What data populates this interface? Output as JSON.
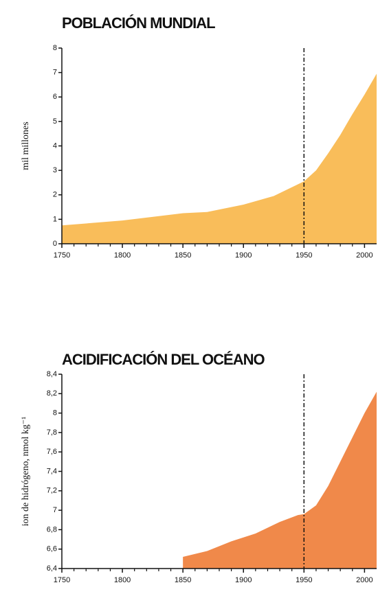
{
  "chart_data": [
    {
      "type": "area",
      "title": "POBLACIÓN MUNDIAL",
      "ylabel": "mil millones",
      "color": "#f9bd5a",
      "x": [
        1750,
        1800,
        1850,
        1870,
        1900,
        1925,
        1950,
        1960,
        1970,
        1980,
        1990,
        2000,
        2010
      ],
      "values": [
        0.75,
        0.95,
        1.25,
        1.3,
        1.6,
        1.95,
        2.55,
        3.0,
        3.7,
        4.45,
        5.3,
        6.1,
        6.95
      ],
      "xlim": [
        1750,
        2010
      ],
      "ylim": [
        0,
        8
      ],
      "xticks": [
        1750,
        1800,
        1850,
        1900,
        1950,
        2000
      ],
      "yticks": [
        0,
        1,
        2,
        3,
        4,
        5,
        6,
        7,
        8
      ],
      "marker_x": 1950
    },
    {
      "type": "area",
      "title": "ACIDIFICACIÓN DEL OCÉANO",
      "ylabel": "ion de hidrógeno, nmol kg⁻¹",
      "color": "#f0894a",
      "x": [
        1850,
        1870,
        1890,
        1910,
        1930,
        1945,
        1950,
        1960,
        1970,
        1980,
        1990,
        2000,
        2010
      ],
      "values": [
        6.52,
        6.58,
        6.68,
        6.76,
        6.88,
        6.95,
        6.96,
        7.05,
        7.25,
        7.5,
        7.75,
        8.0,
        8.22
      ],
      "xlim": [
        1750,
        2010
      ],
      "ylim": [
        6.4,
        8.4
      ],
      "xticks": [
        1750,
        1800,
        1850,
        1900,
        1950,
        2000
      ],
      "yticks": [
        {
          "value": 6.4,
          "label": "6,4"
        },
        {
          "value": 6.6,
          "label": "6,6"
        },
        {
          "value": 6.8,
          "label": "6,8"
        },
        7,
        {
          "value": 7.2,
          "label": "7,2"
        },
        {
          "value": 7.4,
          "label": "7,4"
        },
        {
          "value": 7.6,
          "label": "7,6"
        },
        {
          "value": 7.8,
          "label": "7,8"
        },
        8,
        {
          "value": 8.2,
          "label": "8,2"
        },
        {
          "value": 8.4,
          "label": "8,4"
        }
      ],
      "marker_x": 1950
    }
  ]
}
